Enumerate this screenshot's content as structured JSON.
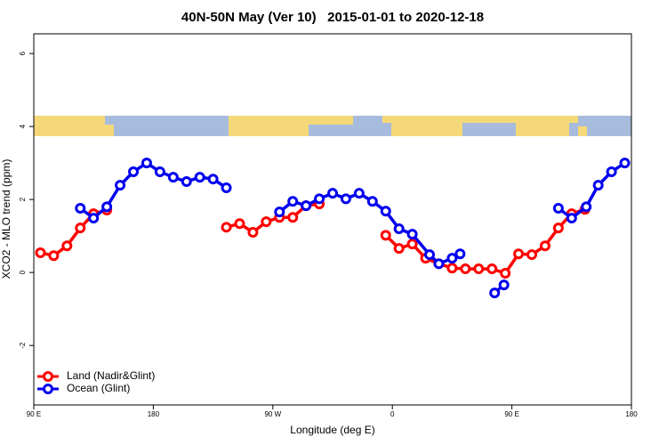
{
  "chart_data": {
    "type": "line",
    "title": "40N-50N May (Ver 10)   2015-01-01 to 2020-12-18",
    "x_label": "Longitude (deg E)",
    "y_label": "XCO2 - MLO trend (ppm)",
    "xlim": [
      90,
      540
    ],
    "ylim": [
      -3.63,
      6.54
    ],
    "xticks": [
      {
        "value": 90,
        "label": "90 E"
      },
      {
        "value": 180,
        "label": "180"
      },
      {
        "value": 270,
        "label": "90 W"
      },
      {
        "value": 360,
        "label": "0"
      },
      {
        "value": 450,
        "label": "90 E"
      },
      {
        "value": 540,
        "label": "180"
      }
    ],
    "yticks": [
      -2,
      0,
      2,
      4,
      6
    ],
    "legend": "bottom-left",
    "series": [
      {
        "name": "Land (Nadir&Glint)",
        "color": "#ff0000",
        "x": [
          95,
          105,
          115,
          125,
          135,
          145,
          null,
          235,
          245,
          255,
          265,
          275,
          285,
          295,
          305,
          null,
          355,
          365,
          375,
          385,
          395,
          405,
          415,
          425,
          435,
          445,
          455,
          465,
          475,
          485,
          495,
          505
        ],
        "values": [
          0.54,
          0.46,
          0.73,
          1.22,
          1.61,
          1.71,
          null,
          1.24,
          1.34,
          1.1,
          1.39,
          1.51,
          1.51,
          1.83,
          1.88,
          null,
          1.02,
          0.66,
          0.78,
          0.39,
          0.24,
          0.12,
          0.1,
          0.1,
          0.1,
          -0.02,
          0.51,
          0.49,
          0.73,
          1.22,
          1.61,
          1.73
        ]
      },
      {
        "name": "Ocean (Glint)",
        "color": "#0000ee",
        "x": [
          125,
          135,
          145,
          155,
          165,
          175,
          185,
          195,
          205,
          215,
          225,
          235,
          null,
          275,
          285,
          295,
          305,
          315,
          325,
          335,
          345,
          355,
          365,
          375,
          388,
          395,
          405,
          411,
          null,
          437,
          444,
          null,
          485,
          495,
          506,
          515,
          525,
          535
        ],
        "values": [
          1.76,
          1.49,
          1.8,
          2.39,
          2.76,
          3.0,
          2.76,
          2.61,
          2.49,
          2.61,
          2.56,
          2.32,
          null,
          1.66,
          1.95,
          1.83,
          2.02,
          2.17,
          2.02,
          2.17,
          1.95,
          1.68,
          1.2,
          1.05,
          0.49,
          0.24,
          0.39,
          0.51,
          null,
          -0.56,
          -0.34,
          null,
          1.76,
          1.49,
          1.8,
          2.39,
          2.76,
          3.0
        ]
      }
    ]
  }
}
